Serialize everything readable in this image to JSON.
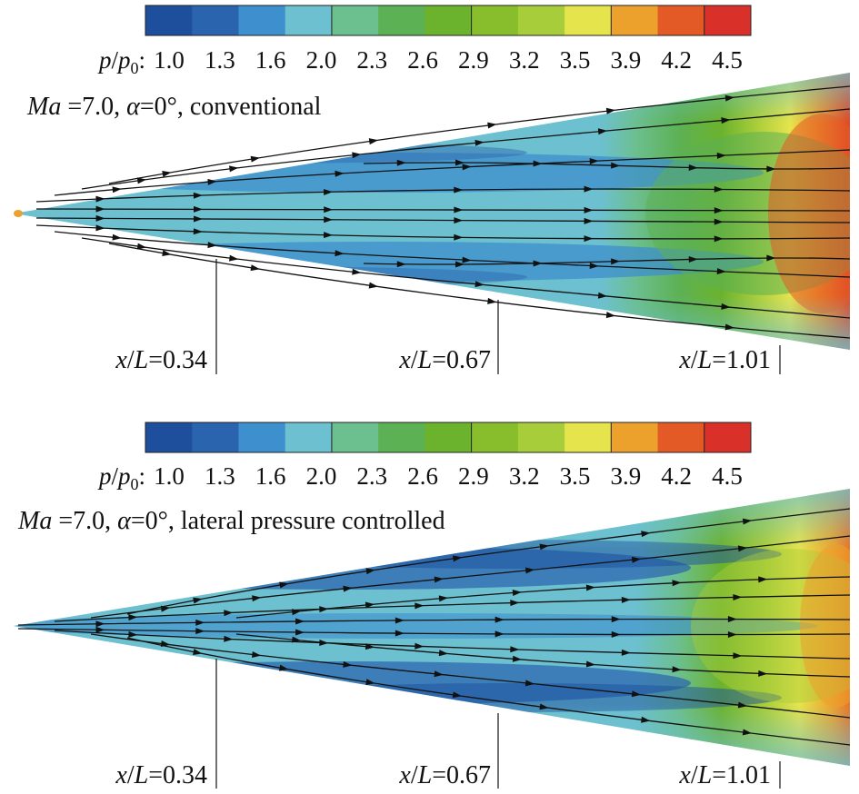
{
  "colorbar": {
    "variable": "p",
    "variable_ref": "p",
    "subscript": "0",
    "colon": ":",
    "levels": [
      "1.0",
      "1.3",
      "1.6",
      "2.0",
      "2.3",
      "2.6",
      "2.9",
      "3.2",
      "3.5",
      "3.9",
      "4.2",
      "4.5"
    ],
    "colors": [
      "#1e4f9d",
      "#2a63ae",
      "#3d8fcd",
      "#6cc0cf",
      "#6cbf8f",
      "#5db155",
      "#6bb22d",
      "#88bd2c",
      "#a8cd3a",
      "#e6e44d",
      "#eda12d",
      "#e35a26",
      "#d9312a"
    ]
  },
  "panels": [
    {
      "id": "conventional",
      "caption": {
        "ma": "Ma",
        "ma_value": " =7.0, ",
        "alpha": "α",
        "alpha_value": "=0°, ",
        "case": "conventional"
      },
      "stations": [
        {
          "var": "x",
          "den": "L",
          "value": "=0.34"
        },
        {
          "var": "x",
          "den": "L",
          "value": "=0.67"
        },
        {
          "var": "x",
          "den": "L",
          "value": "=1.01"
        }
      ]
    },
    {
      "id": "lateral-pressure-controlled",
      "caption": {
        "ma": "Ma",
        "ma_value": " =7.0, ",
        "alpha": "α",
        "alpha_value": "=0°, ",
        "case": "lateral pressure controlled"
      },
      "stations": [
        {
          "var": "x",
          "den": "L",
          "value": "=0.34"
        },
        {
          "var": "x",
          "den": "L",
          "value": "=0.67"
        },
        {
          "var": "x",
          "den": "L",
          "value": "=1.01"
        }
      ]
    }
  ]
}
